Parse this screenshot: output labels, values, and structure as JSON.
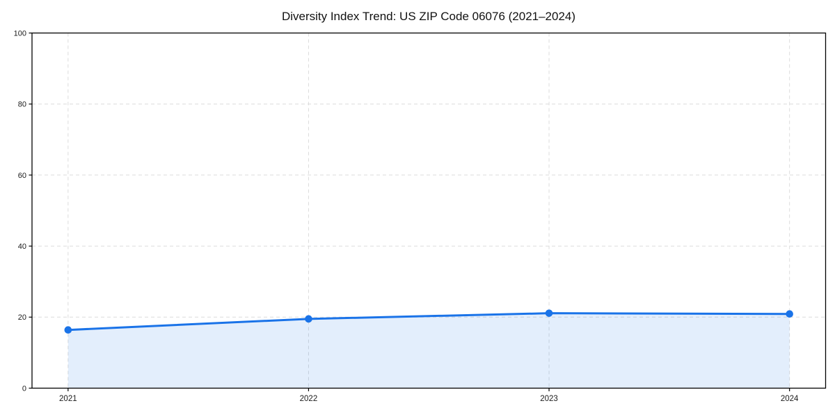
{
  "chart_data": {
    "type": "area",
    "title": "Diversity Index Trend: US ZIP Code 06076 (2021–2024)",
    "categories": [
      "2021",
      "2022",
      "2023",
      "2024"
    ],
    "x": [
      2021,
      2022,
      2023,
      2024
    ],
    "values": [
      16.4,
      19.5,
      21.1,
      20.9
    ],
    "xlabel": "",
    "ylabel": "",
    "ylim": [
      0,
      100
    ],
    "yticks": [
      0,
      20,
      40,
      60,
      80,
      100
    ],
    "grid": true,
    "grid_style": "dashed",
    "legend": false,
    "marker": "circle",
    "colors": {
      "line": "#1a73e8",
      "marker": "#1a73e8",
      "fill": "rgba(26,115,232,0.12)",
      "gridline": "#dcdcdc",
      "spine": "#000000",
      "tick_label": "#1a1a1a",
      "background": "#ffffff"
    }
  }
}
